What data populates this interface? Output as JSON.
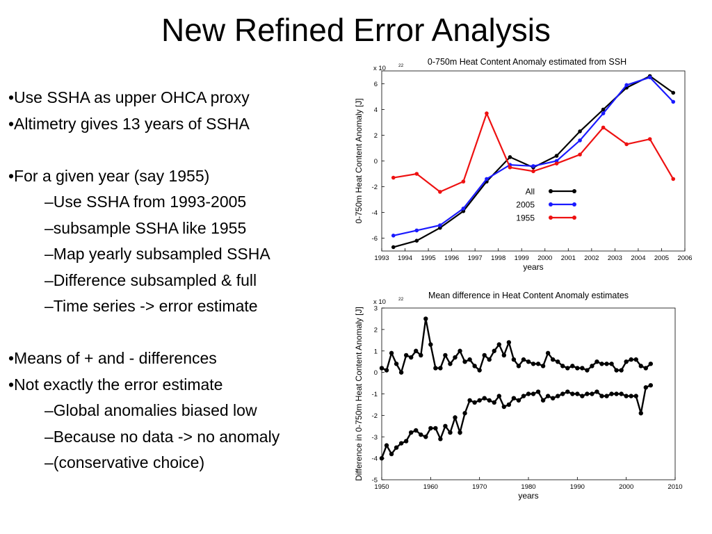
{
  "slide": {
    "title": "New Refined Error Analysis",
    "bullets": [
      {
        "level": 1,
        "text": "•Use SSHA as upper OHCA proxy"
      },
      {
        "level": 1,
        "text": "•Altimetry gives 13 years of SSHA"
      },
      {
        "level": 0,
        "text": ""
      },
      {
        "level": 1,
        "text": "•For a given year (say 1955)"
      },
      {
        "level": 2,
        "text": "–Use SSHA from 1993-2005"
      },
      {
        "level": 2,
        "text": "–subsample SSHA like 1955"
      },
      {
        "level": 2,
        "text": "–Map yearly subsampled SSHA"
      },
      {
        "level": 2,
        "text": "–Difference subsampled & full"
      },
      {
        "level": 2,
        "text": "–Time series -> error estimate"
      },
      {
        "level": 0,
        "text": ""
      },
      {
        "level": 1,
        "text": "•Means of + and - differences"
      },
      {
        "level": 1,
        "text": "•Not exactly the error estimate"
      },
      {
        "level": 2,
        "text": "–Global anomalies biased low"
      },
      {
        "level": 2,
        "text": "–Because no data -> no anomaly"
      },
      {
        "level": 2,
        "text": "–(conservative choice)"
      }
    ]
  },
  "chart_data": [
    {
      "type": "line",
      "title": "0-750m Heat Content Anomaly estimated from SSH",
      "multiplier_label": "x 10",
      "multiplier_exp": "22",
      "xlabel": "years",
      "ylabel": "0-750m Heat Content Anomaly [J]",
      "xlim": [
        1993,
        2006
      ],
      "ylim": [
        -7,
        7
      ],
      "xticks": [
        "1993",
        "1994",
        "1995",
        "1996",
        "1997",
        "1998",
        "1999",
        "2000",
        "2001",
        "2002",
        "2003",
        "2004",
        "2005",
        "2006"
      ],
      "yticks": [
        "-6",
        "-4",
        "-2",
        "0",
        "2",
        "4",
        "6"
      ],
      "x": [
        1993.5,
        1994.5,
        1995.5,
        1996.5,
        1997.5,
        1998.5,
        1999.5,
        2000.5,
        2001.5,
        2002.5,
        2003.5,
        2004.5,
        2005.5
      ],
      "legend_position": "lower-right",
      "series": [
        {
          "name": "All",
          "color": "#000000",
          "values": [
            -6.7,
            -6.2,
            -5.2,
            -3.9,
            -1.6,
            0.3,
            -0.5,
            0.4,
            2.3,
            4.0,
            5.7,
            6.6,
            5.3
          ]
        },
        {
          "name": "2005",
          "color": "#1a1aff",
          "values": [
            -5.8,
            -5.4,
            -5.0,
            -3.7,
            -1.4,
            -0.3,
            -0.4,
            0.0,
            1.6,
            3.7,
            5.9,
            6.5,
            4.6
          ]
        },
        {
          "name": "1955",
          "color": "#ee1111",
          "values": [
            -1.3,
            -1.0,
            -2.4,
            -1.6,
            3.7,
            -0.5,
            -0.8,
            -0.2,
            0.5,
            2.6,
            1.3,
            1.7,
            -1.4
          ]
        }
      ]
    },
    {
      "type": "line",
      "title": "Mean difference in Heat Content Anomaly estimates",
      "multiplier_label": "x 10",
      "multiplier_exp": "22",
      "xlabel": "years",
      "ylabel": "Difference in 0-750m Heat Content Anomaly [J]",
      "xlim": [
        1950,
        2010
      ],
      "ylim": [
        -5,
        3
      ],
      "xticks": [
        "1950",
        "1960",
        "1970",
        "1980",
        "1990",
        "2000",
        "2010"
      ],
      "yticks": [
        "-5",
        "-4",
        "-3",
        "-2",
        "-1",
        "0",
        "1",
        "2",
        "3"
      ],
      "x": [
        1950,
        1951,
        1952,
        1953,
        1954,
        1955,
        1956,
        1957,
        1958,
        1959,
        1960,
        1961,
        1962,
        1963,
        1964,
        1965,
        1966,
        1967,
        1968,
        1969,
        1970,
        1971,
        1972,
        1973,
        1974,
        1975,
        1976,
        1977,
        1978,
        1979,
        1980,
        1981,
        1982,
        1983,
        1984,
        1985,
        1986,
        1987,
        1988,
        1989,
        1990,
        1991,
        1992,
        1993,
        1994,
        1995,
        1996,
        1997,
        1998,
        1999,
        2000,
        2001,
        2002,
        2003,
        2004,
        2005
      ],
      "series": [
        {
          "name": "",
          "color": "#000000",
          "values": [
            0.2,
            0.1,
            0.9,
            0.4,
            0.0,
            0.8,
            0.7,
            1.0,
            0.8,
            2.5,
            1.3,
            0.2,
            0.2,
            0.8,
            0.4,
            0.7,
            1.0,
            0.5,
            0.6,
            0.3,
            0.1,
            0.8,
            0.6,
            1.0,
            1.3,
            0.8,
            1.4,
            0.6,
            0.3,
            0.6,
            0.5,
            0.4,
            0.4,
            0.3,
            0.9,
            0.6,
            0.5,
            0.3,
            0.2,
            0.3,
            0.2,
            0.2,
            0.1,
            0.3,
            0.5,
            0.4,
            0.4,
            0.4,
            0.1,
            0.1,
            0.5,
            0.6,
            0.6,
            0.3,
            0.2,
            0.4
          ]
        },
        {
          "name": "",
          "color": "#000000",
          "values": [
            -4.0,
            -3.4,
            -3.8,
            -3.5,
            -3.3,
            -3.2,
            -2.8,
            -2.7,
            -2.9,
            -3.0,
            -2.6,
            -2.6,
            -3.1,
            -2.5,
            -2.8,
            -2.1,
            -2.8,
            -1.9,
            -1.3,
            -1.4,
            -1.3,
            -1.2,
            -1.3,
            -1.4,
            -1.1,
            -1.6,
            -1.5,
            -1.2,
            -1.3,
            -1.1,
            -1.0,
            -1.0,
            -0.9,
            -1.3,
            -1.1,
            -1.2,
            -1.1,
            -1.0,
            -0.9,
            -1.0,
            -1.0,
            -1.1,
            -1.0,
            -1.0,
            -0.9,
            -1.1,
            -1.1,
            -1.0,
            -1.0,
            -1.0,
            -1.1,
            -1.1,
            -1.1,
            -1.9,
            -0.7,
            -0.6
          ]
        }
      ]
    }
  ]
}
